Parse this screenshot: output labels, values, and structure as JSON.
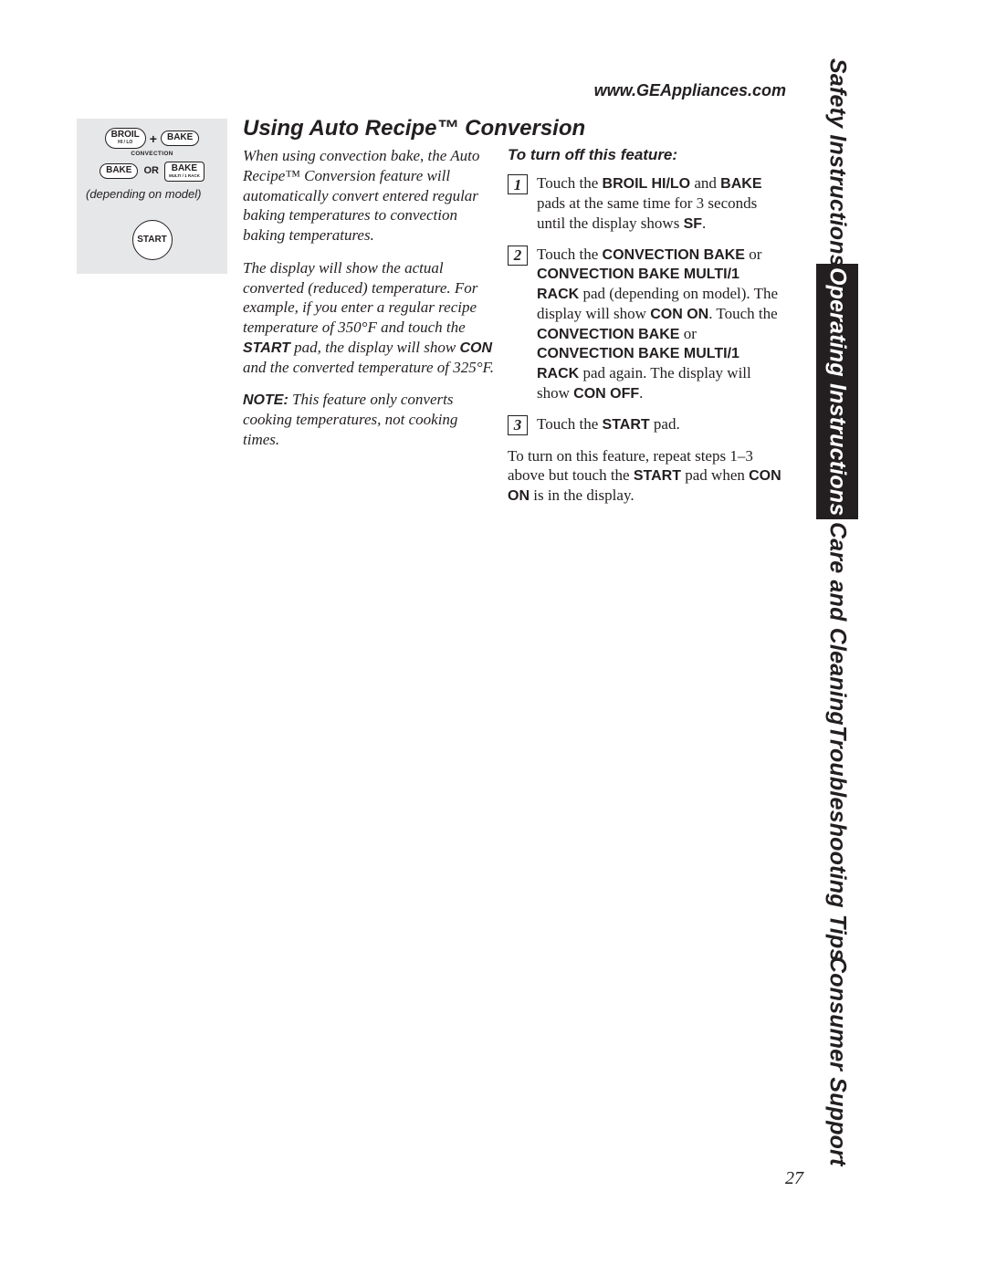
{
  "url": "www.GEAppliances.com",
  "page_number": "27",
  "side_tabs": {
    "safety": "Safety Instructions",
    "operating": "Operating Instructions",
    "care": "Care and Cleaning",
    "trouble": "Troubleshooting Tips",
    "consumer": "Consumer Support"
  },
  "illus": {
    "broil_top": "BROIL",
    "broil_sub": "HI / LO",
    "bake": "BAKE",
    "plus": "+",
    "conv_label": "CONVECTION",
    "or": "OR",
    "bake2_top": "BAKE",
    "bake2_sub": "MULTI / 1 RACK",
    "dep_model": "(depending on model)",
    "start": "START"
  },
  "heading": "Using Auto Recipe™ Conversion",
  "left": {
    "p1": "When using convection bake, the Auto Recipe™ Conversion feature will automatically convert entered regular baking temperatures to convection baking temperatures.",
    "p2a": "The display will show the actual converted (reduced) temperature. For example, if you enter a regular recipe temperature of 350°F and touch the ",
    "p2b": "START",
    "p2c": " pad, the display will show ",
    "p2d": "CON",
    "p2e": " and the converted temperature of 325°F.",
    "note_label": "NOTE:",
    "note_body": " This feature only converts cooking temperatures, not cooking times."
  },
  "right": {
    "subhead": "To turn off this feature:",
    "s1a": "Touch the ",
    "s1b": "BROIL HI/LO",
    "s1c": " and ",
    "s1d": "BAKE",
    "s1e": " pads at the same time for 3 seconds until the display shows ",
    "s1f": "SF",
    "s1g": ".",
    "s2a": "Touch the ",
    "s2b": "CONVECTION BAKE",
    "s2c": " or ",
    "s2d": "CONVECTION BAKE MULTI/1 RACK",
    "s2e": " pad (depending on model). The display will show ",
    "s2f": "CON ON",
    "s2g": ". Touch the ",
    "s2h": "CONVECTION BAKE",
    "s2i": " or ",
    "s2j": "CONVECTION BAKE MULTI/1 RACK",
    "s2k": " pad again. The display will show ",
    "s2l": "CON OFF",
    "s2m": ".",
    "s3a": "Touch the ",
    "s3b": "START",
    "s3c": " pad.",
    "closing_a": "To turn on this feature, repeat steps 1–3 above but touch the ",
    "closing_b": "START",
    "closing_c": " pad when ",
    "closing_d": "CON ON",
    "closing_e": " is in the display."
  },
  "step_nums": {
    "one": "1",
    "two": "2",
    "three": "3"
  }
}
